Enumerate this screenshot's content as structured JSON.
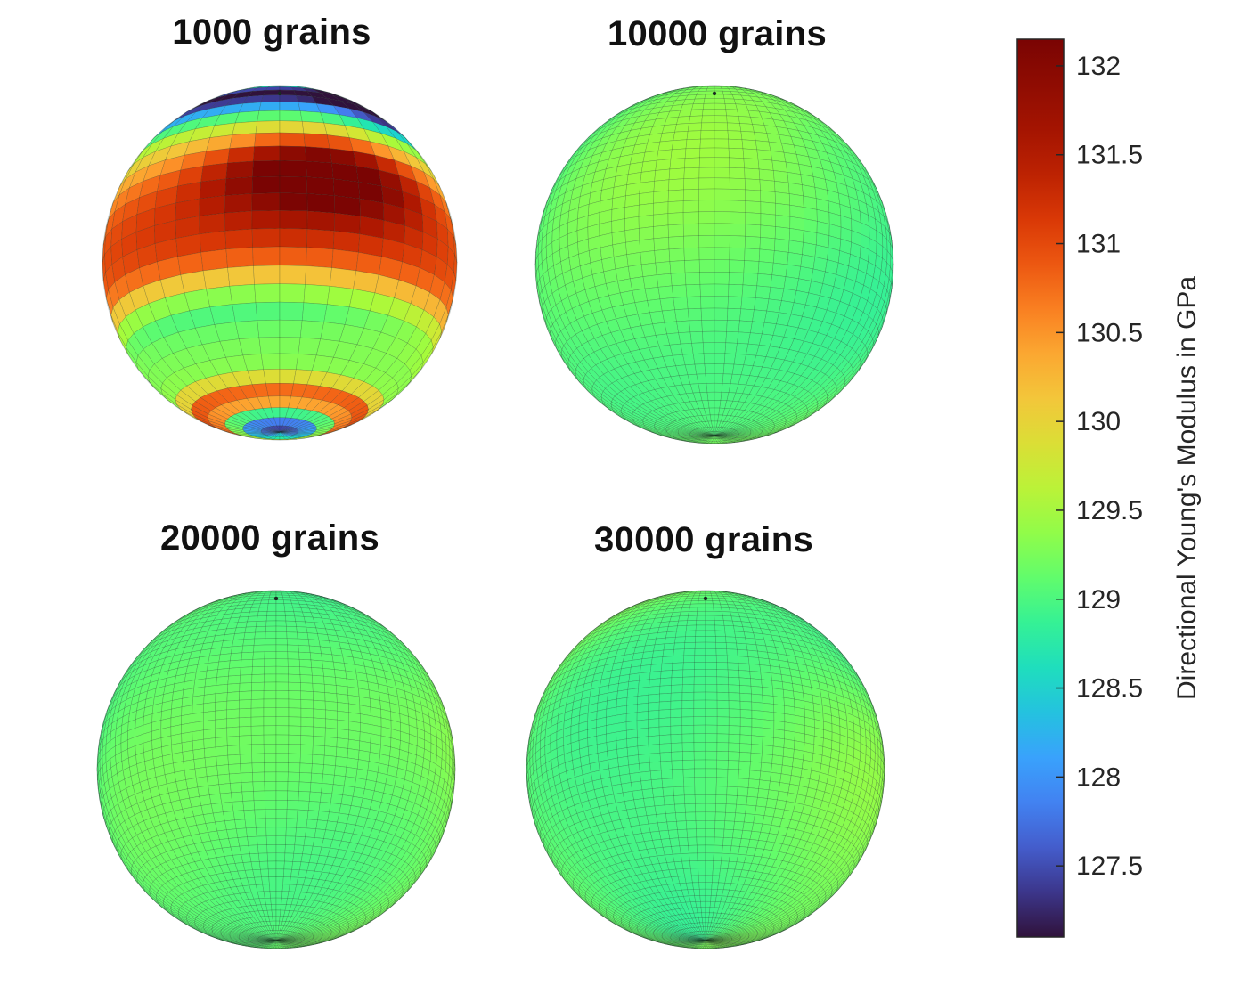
{
  "chart_data": [
    {
      "type": "heatmap",
      "title": "1000 grains",
      "pattern": "strong-bands",
      "value_range": [
        127.1,
        132.15
      ]
    },
    {
      "type": "heatmap",
      "title": "10000 grains",
      "pattern": "near-uniform",
      "value_range": [
        128.6,
        129.5
      ]
    },
    {
      "type": "heatmap",
      "title": "20000 grains",
      "pattern": "near-uniform",
      "value_range": [
        128.6,
        129.4
      ]
    },
    {
      "type": "heatmap",
      "title": "30000 grains",
      "pattern": "near-uniform",
      "value_range": [
        128.7,
        129.4
      ]
    }
  ],
  "colorbar": {
    "label": "Directional Young's Modulus in GPa",
    "colormap": "turbo",
    "range": [
      127.1,
      132.15
    ],
    "ticks": [
      127.5,
      128,
      128.5,
      129,
      129.5,
      130,
      130.5,
      131,
      131.5,
      132
    ],
    "tick_labels": [
      "127.5",
      "128",
      "128.5",
      "129",
      "129.5",
      "130",
      "130.5",
      "131",
      "131.5",
      "132"
    ],
    "location": "right"
  }
}
